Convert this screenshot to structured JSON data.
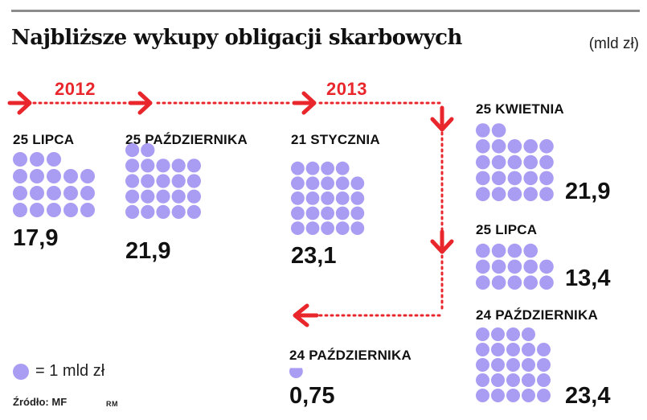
{
  "title": "Najbliższe wykupy obligacji skarbowych",
  "unit": "(mld zł)",
  "years": [
    "2012",
    "2013"
  ],
  "legend": {
    "label": "= 1 mld zł"
  },
  "source": "Źródło: MF",
  "credit": "RM",
  "colors": {
    "dot": "#a99cf3",
    "arrow": "#e8262b",
    "text": "#111111"
  },
  "chart_data": {
    "type": "pictogram",
    "title": "Najbliższe wykupy obligacji skarbowych",
    "unit": "(mld zł)",
    "unit_per_dot": 1,
    "items": [
      {
        "year": "2012",
        "date": "25 LIPCA",
        "value": 17.9,
        "label": "17,9"
      },
      {
        "year": "2012",
        "date": "25 PAŹDZIERNIKA",
        "value": 21.9,
        "label": "21,9"
      },
      {
        "year": "2013",
        "date": "21 STYCZNIA",
        "value": 23.1,
        "label": "23,1"
      },
      {
        "year": "2013",
        "date": "25 KWIETNIA",
        "value": 21.9,
        "label": "21,9"
      },
      {
        "year": "2013",
        "date": "25 LIPCA",
        "value": 13.4,
        "label": "13,4"
      },
      {
        "year": "2013",
        "date": "24 PAŹDZIERNIKA",
        "value": 23.4,
        "label": "23,4"
      },
      {
        "year": "2013",
        "date": "24 PAŹDZIERNIKA",
        "value": 0.75,
        "label": "0,75"
      }
    ]
  }
}
